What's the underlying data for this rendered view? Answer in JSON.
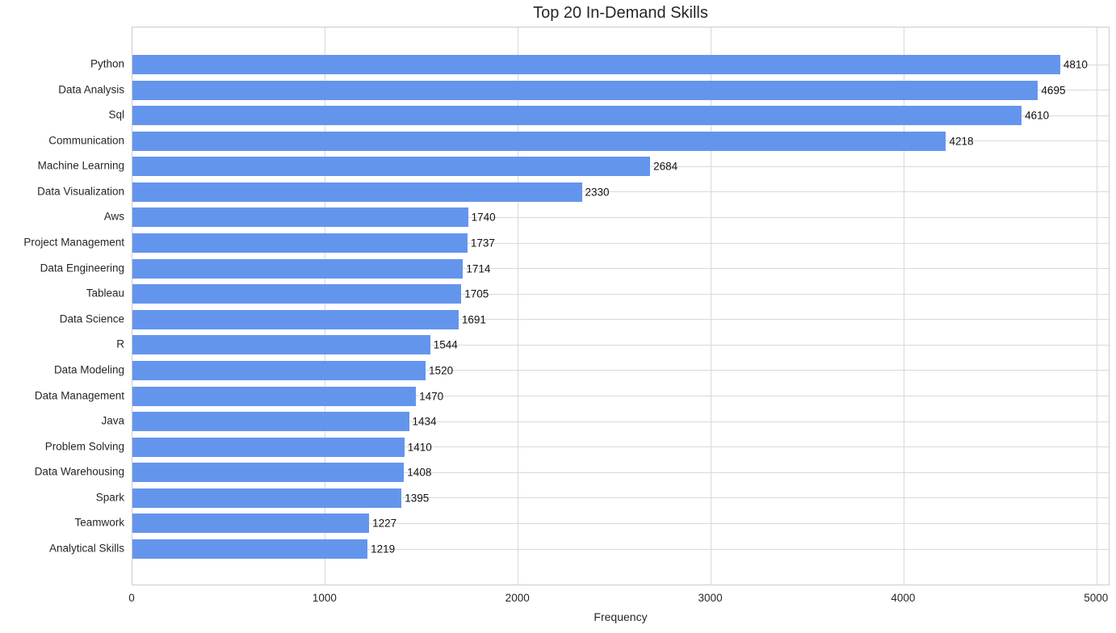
{
  "chart_data": {
    "type": "bar",
    "orientation": "horizontal",
    "title": "Top 20 In-Demand Skills",
    "xlabel": "Frequency",
    "ylabel": "",
    "categories": [
      "Python",
      "Data Analysis",
      "Sql",
      "Communication",
      "Machine Learning",
      "Data Visualization",
      "Aws",
      "Project Management",
      "Data Engineering",
      "Tableau",
      "Data Science",
      "R",
      "Data Modeling",
      "Data Management",
      "Java",
      "Problem Solving",
      "Data Warehousing",
      "Spark",
      "Teamwork",
      "Analytical Skills"
    ],
    "values": [
      4810,
      4695,
      4610,
      4218,
      2684,
      2330,
      1740,
      1737,
      1714,
      1705,
      1691,
      1544,
      1520,
      1470,
      1434,
      1410,
      1408,
      1395,
      1227,
      1219
    ],
    "value_labels": [
      "4810",
      "4695",
      "4610",
      "4218",
      "2684",
      "2330",
      "1740",
      "1737",
      "1714",
      "1705",
      "1691",
      "1544",
      "1520",
      "1470",
      "1434",
      "1410",
      "1408",
      "1395",
      "1227",
      "1219"
    ],
    "xticks": [
      0,
      1000,
      2000,
      3000,
      4000,
      5000
    ],
    "xtick_labels": [
      "0",
      "1000",
      "2000",
      "3000",
      "4000",
      "5000"
    ],
    "xlim": [
      0,
      5070
    ],
    "grid": true,
    "legend_position": "none",
    "show_value_labels": true,
    "colors": {
      "bar": "#6495ed",
      "grid": "#d9d9d9",
      "spine": "#cccccc",
      "tick_text": "#262626",
      "value_text": "#111111"
    }
  }
}
